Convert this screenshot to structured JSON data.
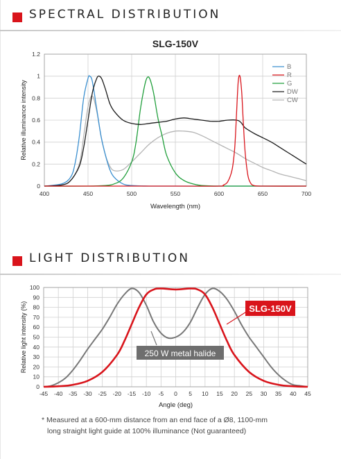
{
  "sections": {
    "spectral_title": "SPECTRAL DISTRIBUTION",
    "light_title": "LIGHT DISTRIBUTION"
  },
  "footnote": {
    "line1": "* Measured at a 600-mm distance from an end face of a Ø8, 1100-mm",
    "line2": "long straight light guide at 100% illuminance (Not guaranteed)"
  },
  "chart_data": [
    {
      "type": "line",
      "title": "SLG-150V",
      "xlabel": "Wavelength (nm)",
      "ylabel": "Relative illuminance intensity",
      "xlim": [
        400,
        700
      ],
      "ylim": [
        0,
        1.2
      ],
      "x_ticks": [
        400,
        450,
        500,
        550,
        600,
        650,
        700
      ],
      "y_ticks": [
        "0",
        "0.2",
        "0.4",
        "0.6",
        "0.8",
        "1",
        "1.2"
      ],
      "grid": true,
      "legend_position": "top-right",
      "series": [
        {
          "name": "B",
          "color": "#3a8fd0",
          "x": [
            400,
            420,
            430,
            435,
            440,
            445,
            450,
            452,
            455,
            460,
            465,
            470,
            475,
            480,
            490,
            500,
            520,
            550,
            600,
            650,
            700
          ],
          "y": [
            0,
            0.02,
            0.08,
            0.2,
            0.45,
            0.8,
            0.98,
            1.0,
            0.95,
            0.7,
            0.45,
            0.28,
            0.15,
            0.08,
            0.02,
            0.005,
            0,
            0,
            0,
            0,
            0
          ]
        },
        {
          "name": "R",
          "color": "#d9141b",
          "x": [
            400,
            550,
            600,
            605,
            610,
            615,
            618,
            620,
            622,
            624,
            626,
            628,
            630,
            633,
            636,
            640,
            650,
            700
          ],
          "y": [
            0,
            0,
            0,
            0.01,
            0.04,
            0.15,
            0.35,
            0.65,
            0.95,
            1.0,
            0.85,
            0.55,
            0.3,
            0.1,
            0.03,
            0.005,
            0,
            0
          ]
        },
        {
          "name": "G",
          "color": "#1f9e3a",
          "x": [
            400,
            450,
            470,
            480,
            490,
            500,
            505,
            510,
            515,
            518,
            521,
            525,
            530,
            535,
            540,
            550,
            560,
            570,
            580,
            600,
            650,
            700
          ],
          "y": [
            0,
            0,
            0.005,
            0.02,
            0.07,
            0.22,
            0.4,
            0.7,
            0.92,
            0.99,
            0.97,
            0.85,
            0.62,
            0.45,
            0.28,
            0.12,
            0.05,
            0.02,
            0.005,
            0,
            0,
            0
          ]
        },
        {
          "name": "DW",
          "color": "#1a1a1a",
          "x": [
            400,
            420,
            430,
            440,
            445,
            450,
            455,
            460,
            463,
            466,
            470,
            475,
            480,
            490,
            500,
            510,
            520,
            530,
            540,
            550,
            560,
            570,
            580,
            590,
            600,
            610,
            620,
            625,
            630,
            640,
            650,
            660,
            670,
            680,
            690,
            700
          ],
          "y": [
            0,
            0.01,
            0.05,
            0.18,
            0.35,
            0.6,
            0.85,
            0.98,
            1.0,
            0.97,
            0.88,
            0.75,
            0.68,
            0.6,
            0.57,
            0.56,
            0.57,
            0.58,
            0.59,
            0.61,
            0.62,
            0.61,
            0.6,
            0.59,
            0.59,
            0.6,
            0.6,
            0.58,
            0.53,
            0.48,
            0.44,
            0.4,
            0.35,
            0.3,
            0.25,
            0.2
          ]
        },
        {
          "name": "CW",
          "color": "#b4b4b4",
          "x": [
            400,
            420,
            430,
            440,
            445,
            450,
            455,
            460,
            465,
            470,
            475,
            480,
            490,
            500,
            510,
            520,
            530,
            540,
            550,
            560,
            570,
            580,
            590,
            600,
            610,
            620,
            630,
            640,
            650,
            660,
            670,
            680,
            690,
            700
          ],
          "y": [
            0,
            0.01,
            0.05,
            0.2,
            0.45,
            0.72,
            0.82,
            0.68,
            0.45,
            0.28,
            0.18,
            0.14,
            0.15,
            0.22,
            0.3,
            0.38,
            0.44,
            0.48,
            0.5,
            0.5,
            0.49,
            0.46,
            0.42,
            0.38,
            0.34,
            0.3,
            0.25,
            0.21,
            0.17,
            0.14,
            0.11,
            0.09,
            0.07,
            0.05
          ]
        }
      ]
    },
    {
      "type": "line",
      "title": "",
      "xlabel": "Angle (deg)",
      "ylabel": "Relative light intensity (%)",
      "xlim": [
        -45,
        45
      ],
      "ylim": [
        0,
        100
      ],
      "x_ticks": [
        -45,
        -40,
        -35,
        -30,
        -25,
        -20,
        -15,
        -10,
        -5,
        0,
        5,
        10,
        15,
        20,
        25,
        30,
        35,
        40,
        45
      ],
      "y_ticks": [
        0,
        10,
        20,
        30,
        40,
        50,
        60,
        70,
        80,
        90,
        100
      ],
      "grid": true,
      "annotations": [
        "SLG-150V",
        "250 W metal halide"
      ],
      "series": [
        {
          "color": "#d9141b",
          "x": [
            -45,
            -40,
            -35,
            -30,
            -25,
            -20,
            -17.5,
            -15,
            -12.5,
            -10,
            -7.5,
            -5,
            0,
            5,
            7.5,
            10,
            12.5,
            15,
            17.5,
            20,
            25,
            30,
            35,
            40,
            45
          ],
          "y": [
            0,
            0.5,
            2,
            6,
            15,
            32,
            46,
            63,
            80,
            93,
            98,
            99,
            98,
            99,
            98,
            93,
            80,
            63,
            46,
            32,
            15,
            6,
            2,
            0.5,
            0
          ]
        },
        {
          "color": "#777777",
          "x": [
            -45,
            -42.5,
            -40,
            -37.5,
            -35,
            -32.5,
            -30,
            -27.5,
            -25,
            -22.5,
            -20,
            -17.5,
            -15,
            -12.5,
            -10,
            -7.5,
            -5,
            -2.5,
            0,
            2.5,
            5,
            7.5,
            10,
            12.5,
            15,
            17.5,
            20,
            22.5,
            25,
            27.5,
            30,
            32.5,
            35,
            37.5,
            40,
            42.5,
            45
          ],
          "y": [
            0,
            1,
            4,
            9,
            17,
            27,
            38,
            48,
            58,
            70,
            83,
            93,
            99,
            95,
            82,
            65,
            54,
            49,
            50,
            55,
            65,
            80,
            93,
            99,
            96,
            88,
            76,
            62,
            50,
            40,
            30,
            20,
            12,
            6,
            2,
            1,
            0
          ]
        }
      ]
    }
  ]
}
